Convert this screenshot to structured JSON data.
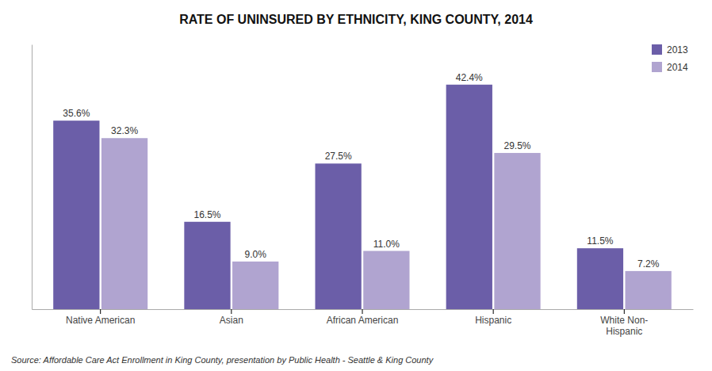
{
  "chart_data": {
    "type": "bar",
    "title": "RATE OF UNINSURED BY ETHNICITY, KING COUNTY, 2014",
    "categories": [
      "Native American",
      "Asian",
      "African American",
      "Hispanic",
      "White Non-\nHispanic"
    ],
    "series": [
      {
        "name": "2013",
        "color": "#6B5EA8",
        "values": [
          35.6,
          16.5,
          27.5,
          42.4,
          11.5
        ],
        "value_labels": [
          "35.6%",
          "16.5%",
          "27.5%",
          "42.4%",
          "11.5%"
        ]
      },
      {
        "name": "2014",
        "color": "#B0A4D0",
        "values": [
          32.3,
          9.0,
          11.0,
          29.5,
          7.2
        ],
        "value_labels": [
          "32.3%",
          "9.0%",
          "11.0%",
          "29.5%",
          "7.2%"
        ]
      }
    ],
    "ylim": [
      0,
      50
    ],
    "data_labels": true,
    "tick_labels": "x",
    "grid": false,
    "legend": "upper right",
    "annotations": [
      "Source: Affordable Care Act Enrollment in King County, presentation by Public Health - Seattle & King County"
    ]
  }
}
